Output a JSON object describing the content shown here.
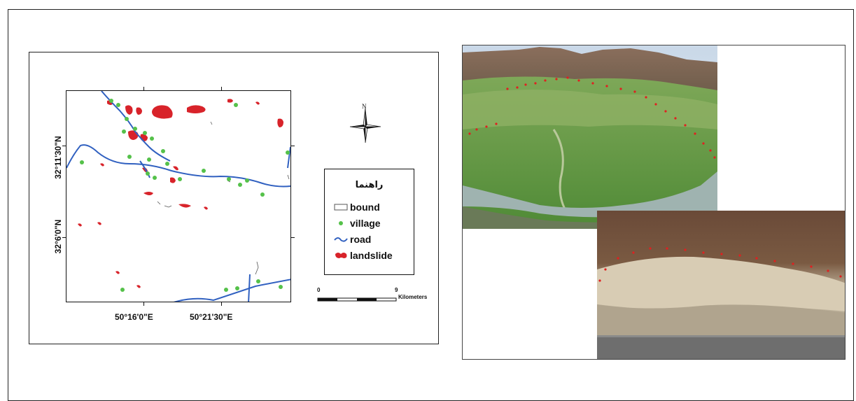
{
  "map": {
    "lat_labels": [
      "32°11'30\"N",
      "32°6'0\"N"
    ],
    "lon_labels": [
      "50°16'0\"E",
      "50°21'30\"E"
    ],
    "north_arrow": {
      "icon": "compass-rose-icon",
      "letter": "N"
    },
    "legend": {
      "title": "راهنما",
      "items": [
        {
          "label": "bound",
          "symbol": "hollow-rectangle",
          "color": "#555555"
        },
        {
          "label": "village",
          "symbol": "dot",
          "color": "#55c14a"
        },
        {
          "label": "road",
          "symbol": "line",
          "color": "#3060c0"
        },
        {
          "label": "landslide",
          "symbol": "blob",
          "color": "#d8232a"
        }
      ]
    },
    "scale_bar": {
      "start": "0",
      "end": "9",
      "unit": "Kilometers"
    },
    "colors": {
      "landslide": "#d8232a",
      "village": "#55c14a",
      "road": "#3060c0",
      "bound": "#555555"
    }
  },
  "photos": [
    {
      "name": "mountain-valley-landslide-photo"
    },
    {
      "name": "roadcut-landslide-photo"
    }
  ]
}
